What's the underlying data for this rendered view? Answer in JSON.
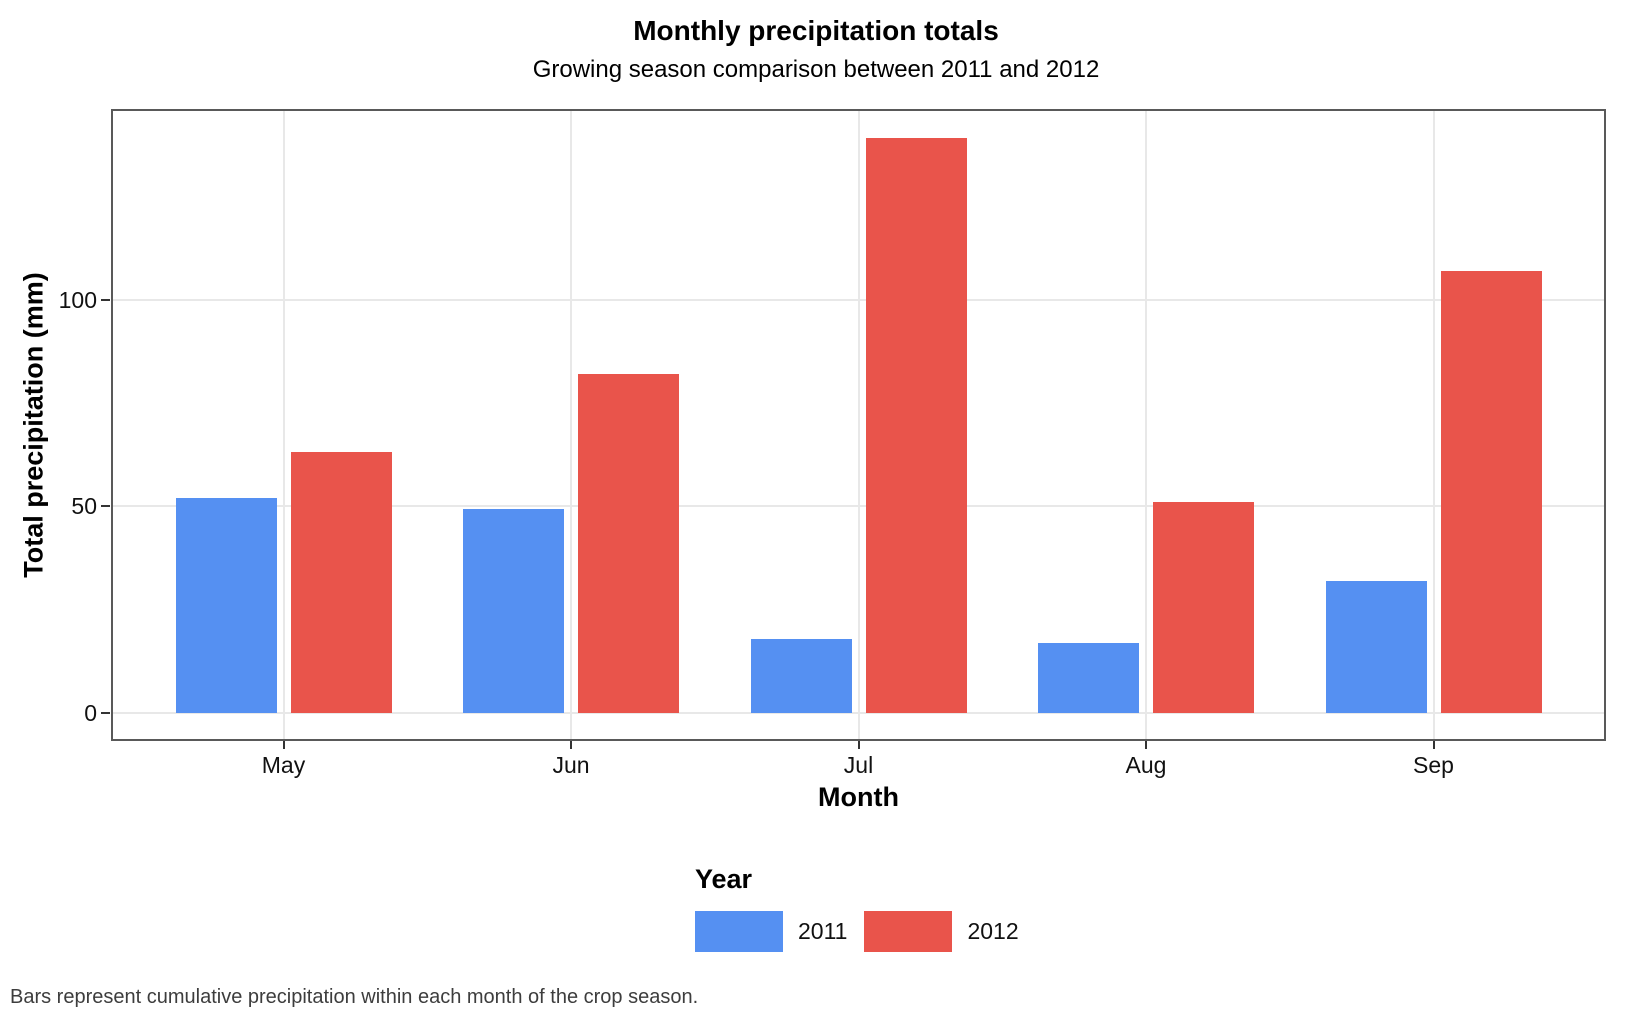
{
  "chart_data": {
    "type": "bar",
    "title": "Monthly precipitation totals",
    "subtitle": "Growing season comparison between 2011 and 2012",
    "categories": [
      "May",
      "Jun",
      "Jul",
      "Aug",
      "Sep"
    ],
    "series": [
      {
        "name": "2011",
        "color": "#5590F2",
        "values": [
          52,
          49.4,
          18,
          17,
          32
        ]
      },
      {
        "name": "2012",
        "color": "#E9544B",
        "values": [
          63,
          82,
          139,
          51,
          107
        ]
      }
    ],
    "xlabel": "Month",
    "ylabel": "Total precipitation (mm)",
    "yticks": [
      0,
      50,
      100
    ],
    "ylim": [
      0,
      146
    ],
    "grid": "major horizontal and vertical, light gray on white panel",
    "legend_title": "Year",
    "legend_position": "bottom",
    "caption": "Bars represent cumulative precipitation within each month of the crop season."
  },
  "legend": {
    "title": "Year",
    "items": [
      {
        "label": "2011",
        "color": "#5590F2"
      },
      {
        "label": "2012",
        "color": "#E9544B"
      }
    ]
  },
  "colors": {
    "bar_2011": "#5590F2",
    "bar_2012": "#E9544B",
    "panel_border": "#595959",
    "gridline": "#e8e8e8",
    "tick_mark": "#333333",
    "caption_text": "#3d3d3d"
  }
}
